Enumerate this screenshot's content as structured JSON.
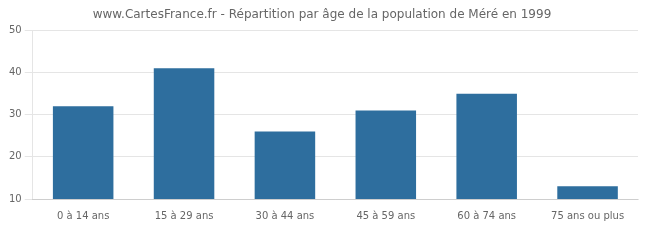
{
  "chart_data": {
    "type": "bar",
    "title": "www.CartesFrance.fr - Répartition par âge de la population de Méré en 1999",
    "categories": [
      "0 à 14 ans",
      "15 à 29 ans",
      "30 à 44 ans",
      "45 à 59 ans",
      "60 à 74 ans",
      "75 ans ou plus"
    ],
    "values": [
      32,
      41,
      26,
      31,
      35,
      13
    ],
    "color": "#2e6e9e",
    "ylim": [
      10,
      50
    ],
    "yticks": [
      10,
      20,
      30,
      40,
      50
    ],
    "grid": true
  }
}
